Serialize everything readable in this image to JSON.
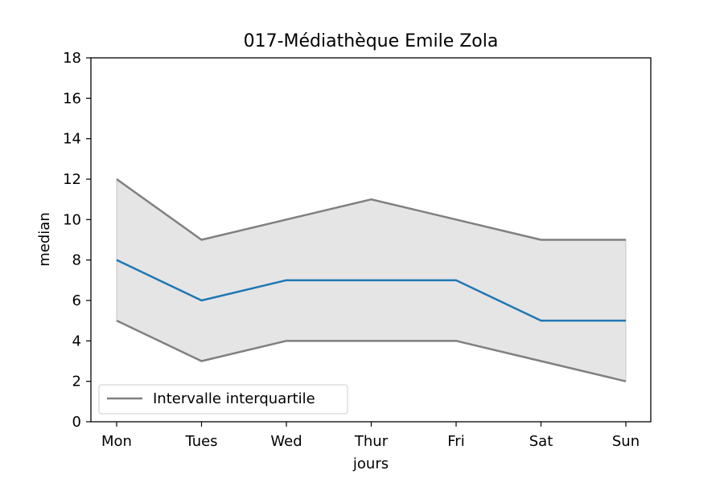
{
  "chart_data": {
    "type": "line",
    "title": "017-Médiathèque Emile Zola",
    "xlabel": "jours",
    "ylabel": "median",
    "categories": [
      "Mon",
      "Tues",
      "Wed",
      "Thur",
      "Fri",
      "Sat",
      "Sun"
    ],
    "ylim": [
      0,
      18
    ],
    "yticks": [
      0,
      2,
      4,
      6,
      8,
      10,
      12,
      14,
      16,
      18
    ],
    "series": [
      {
        "role": "median",
        "values": [
          8,
          6,
          7,
          7,
          7,
          5,
          5
        ],
        "color": "#1f77b4"
      },
      {
        "role": "q3",
        "values": [
          12,
          9,
          10,
          11,
          10,
          9,
          9
        ],
        "color": "#808080"
      },
      {
        "role": "q1",
        "values": [
          5,
          3,
          4,
          4,
          4,
          3,
          2
        ],
        "color": "#808080"
      }
    ],
    "band_color": "#e5e5e5",
    "legend": {
      "position": "lower-left",
      "entries": [
        {
          "label": "Intervalle interquartile",
          "color": "#808080"
        }
      ]
    },
    "grid": false
  }
}
